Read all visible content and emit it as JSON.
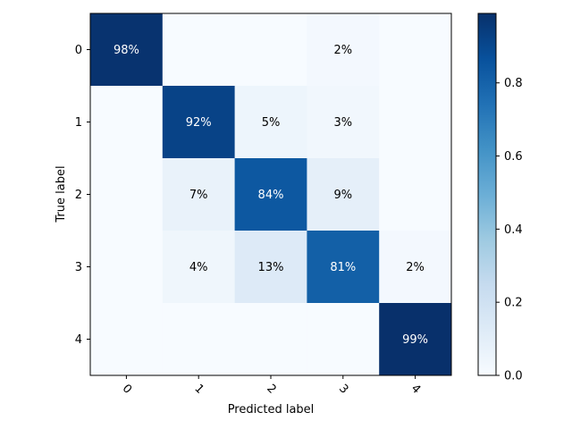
{
  "chart_data": {
    "type": "heatmap",
    "xlabel": "Predicted label",
    "ylabel": "True label",
    "x_categories": [
      "0",
      "1",
      "2",
      "3",
      "4"
    ],
    "y_categories": [
      "0",
      "1",
      "2",
      "3",
      "4"
    ],
    "values": [
      [
        0.98,
        0.0,
        0.0,
        0.02,
        0.0
      ],
      [
        0.0,
        0.92,
        0.05,
        0.03,
        0.0
      ],
      [
        0.0,
        0.07,
        0.84,
        0.09,
        0.0
      ],
      [
        0.0,
        0.04,
        0.13,
        0.81,
        0.02
      ],
      [
        0.0,
        0.0,
        0.0,
        0.0,
        0.99
      ]
    ],
    "cell_labels": [
      [
        "98%",
        "",
        "",
        "2%",
        ""
      ],
      [
        "",
        "92%",
        "5%",
        "3%",
        ""
      ],
      [
        "",
        "7%",
        "84%",
        "9%",
        ""
      ],
      [
        "",
        "4%",
        "13%",
        "81%",
        "2%"
      ],
      [
        "",
        "",
        "",
        "",
        "99%"
      ]
    ],
    "colormap": "Blues",
    "vmin": 0,
    "vmax": 0.99,
    "colorbar": {
      "ticks": [
        0.0,
        0.2,
        0.4,
        0.6,
        0.8
      ],
      "tick_labels": [
        "0.0",
        "0.2",
        "0.4",
        "0.6",
        "0.8"
      ]
    },
    "text_color_dark": "#000000",
    "text_color_light": "#ffffff",
    "x_tick_rotation": "45"
  }
}
